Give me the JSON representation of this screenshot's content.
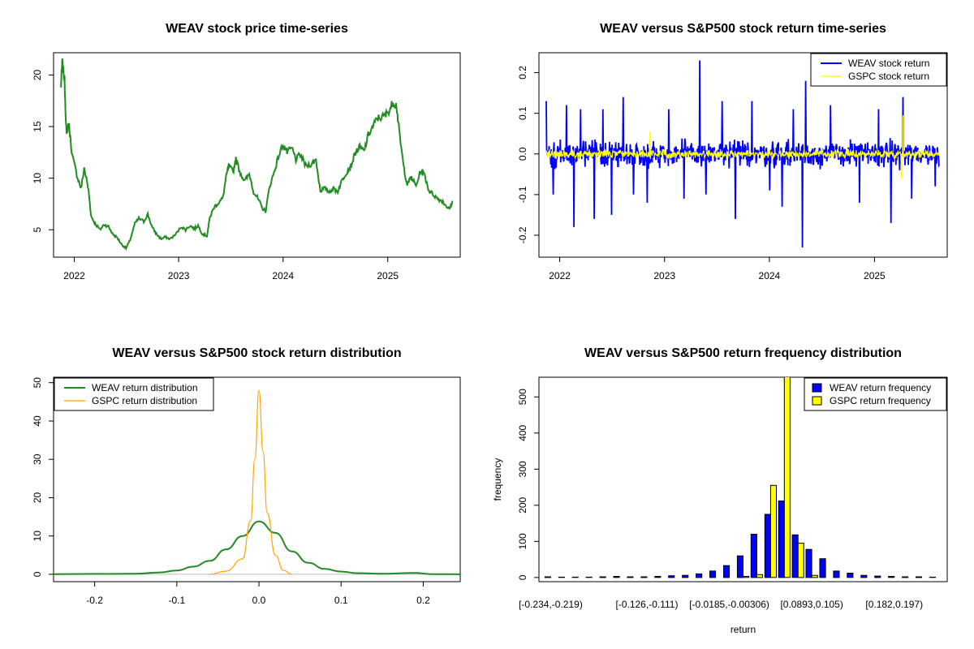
{
  "chart_data": [
    {
      "id": "price",
      "type": "line",
      "title": "WEAV stock price time-series",
      "xlabel": "",
      "ylabel": "",
      "x_ticks": [
        "2022",
        "2023",
        "2024",
        "2025"
      ],
      "y_ticks": [
        5,
        10,
        15,
        20
      ],
      "xlim": [
        "2021-11-01",
        "2025-08-31"
      ],
      "ylim": [
        2.5,
        22
      ],
      "series": [
        {
          "color": "#228B22",
          "points": [
            [
              "2021-11-15",
              18.7
            ],
            [
              "2021-11-20",
              21.2
            ],
            [
              "2021-11-28",
              19.5
            ],
            [
              "2021-12-05",
              14.0
            ],
            [
              "2021-12-12",
              15.5
            ],
            [
              "2021-12-25",
              12.2
            ],
            [
              "2022-01-10",
              10.3
            ],
            [
              "2022-01-25",
              9.0
            ],
            [
              "2022-02-05",
              11.0
            ],
            [
              "2022-02-20",
              8.8
            ],
            [
              "2022-03-01",
              6.3
            ],
            [
              "2022-03-15",
              5.6
            ],
            [
              "2022-04-01",
              5.0
            ],
            [
              "2022-04-15",
              5.5
            ],
            [
              "2022-05-01",
              5.3
            ],
            [
              "2022-05-15",
              4.6
            ],
            [
              "2022-06-01",
              4.2
            ],
            [
              "2022-06-15",
              3.6
            ],
            [
              "2022-07-01",
              3.2
            ],
            [
              "2022-07-15",
              4.0
            ],
            [
              "2022-08-01",
              5.6
            ],
            [
              "2022-08-15",
              6.1
            ],
            [
              "2022-09-01",
              5.8
            ],
            [
              "2022-09-15",
              6.5
            ],
            [
              "2022-10-01",
              5.2
            ],
            [
              "2022-10-15",
              4.6
            ],
            [
              "2022-11-01",
              4.1
            ],
            [
              "2022-11-15",
              4.3
            ],
            [
              "2022-12-01",
              4.1
            ],
            [
              "2022-12-20",
              4.5
            ],
            [
              "2023-01-10",
              5.3
            ],
            [
              "2023-01-25",
              5.0
            ],
            [
              "2023-02-10",
              5.4
            ],
            [
              "2023-02-25",
              5.1
            ],
            [
              "2023-03-10",
              5.4
            ],
            [
              "2023-03-25",
              4.6
            ],
            [
              "2023-04-10",
              4.4
            ],
            [
              "2023-04-20",
              6.2
            ],
            [
              "2023-05-05",
              7.2
            ],
            [
              "2023-05-20",
              7.6
            ],
            [
              "2023-06-05",
              8.1
            ],
            [
              "2023-06-15",
              10.0
            ],
            [
              "2023-06-25",
              11.2
            ],
            [
              "2023-07-10",
              10.6
            ],
            [
              "2023-07-20",
              11.8
            ],
            [
              "2023-08-05",
              10.5
            ],
            [
              "2023-08-20",
              9.7
            ],
            [
              "2023-09-05",
              10.4
            ],
            [
              "2023-09-20",
              8.7
            ],
            [
              "2023-10-05",
              8.0
            ],
            [
              "2023-10-20",
              7.1
            ],
            [
              "2023-11-01",
              6.8
            ],
            [
              "2023-11-15",
              9.2
            ],
            [
              "2023-12-01",
              10.6
            ],
            [
              "2023-12-15",
              12.0
            ],
            [
              "2024-01-01",
              13.3
            ],
            [
              "2024-01-15",
              12.5
            ],
            [
              "2024-02-01",
              12.9
            ],
            [
              "2024-02-15",
              11.8
            ],
            [
              "2024-03-01",
              12.3
            ],
            [
              "2024-03-20",
              11.2
            ],
            [
              "2024-04-10",
              11.4
            ],
            [
              "2024-04-25",
              11.8
            ],
            [
              "2024-05-10",
              8.8
            ],
            [
              "2024-05-25",
              9.0
            ],
            [
              "2024-06-10",
              8.7
            ],
            [
              "2024-06-25",
              9.0
            ],
            [
              "2024-07-10",
              8.7
            ],
            [
              "2024-07-25",
              9.8
            ],
            [
              "2024-08-10",
              10.6
            ],
            [
              "2024-08-25",
              11.2
            ],
            [
              "2024-09-10",
              12.5
            ],
            [
              "2024-09-25",
              13.0
            ],
            [
              "2024-10-10",
              12.6
            ],
            [
              "2024-10-25",
              14.2
            ],
            [
              "2024-11-10",
              15.0
            ],
            [
              "2024-11-25",
              15.8
            ],
            [
              "2024-12-10",
              15.9
            ],
            [
              "2024-12-25",
              16.1
            ],
            [
              "2025-01-10",
              16.8
            ],
            [
              "2025-01-20",
              17.4
            ],
            [
              "2025-02-01",
              17.0
            ],
            [
              "2025-02-10",
              14.5
            ],
            [
              "2025-02-25",
              11.2
            ],
            [
              "2025-03-10",
              9.4
            ],
            [
              "2025-03-25",
              10.1
            ],
            [
              "2025-04-10",
              9.2
            ],
            [
              "2025-04-25",
              10.7
            ],
            [
              "2025-05-10",
              10.3
            ],
            [
              "2025-05-25",
              8.8
            ],
            [
              "2025-06-10",
              8.4
            ],
            [
              "2025-06-25",
              8.0
            ],
            [
              "2025-07-10",
              7.8
            ],
            [
              "2025-07-25",
              7.3
            ],
            [
              "2025-08-05",
              7.0
            ],
            [
              "2025-08-15",
              7.8
            ]
          ]
        }
      ]
    },
    {
      "id": "returns",
      "type": "line",
      "title": "WEAV versus S&P500 stock return time-series",
      "xlabel": "",
      "ylabel": "",
      "x_ticks": [
        "2022",
        "2023",
        "2024",
        "2025"
      ],
      "y_ticks": [
        -0.2,
        -0.1,
        0.0,
        0.1,
        0.2
      ],
      "y_tick_labels": [
        "-0.2",
        "-0.1",
        "0.0",
        "0.1",
        "0.2"
      ],
      "xlim": [
        "2021-11-01",
        "2025-08-31"
      ],
      "ylim": [
        -0.25,
        0.245
      ],
      "legend_position": "top-right",
      "series": [
        {
          "name": "WEAV stock return",
          "color": "#0000FF",
          "band": 0.045,
          "spikes": [
            [
              "2021-11-15",
              0.13
            ],
            [
              "2021-12-10",
              -0.1
            ],
            [
              "2022-01-25",
              0.12
            ],
            [
              "2022-02-20",
              -0.18
            ],
            [
              "2022-03-15",
              0.11
            ],
            [
              "2022-05-01",
              -0.16
            ],
            [
              "2022-06-01",
              0.11
            ],
            [
              "2022-07-01",
              -0.15
            ],
            [
              "2022-08-10",
              0.14
            ],
            [
              "2022-09-15",
              -0.1
            ],
            [
              "2022-11-01",
              -0.12
            ],
            [
              "2023-01-15",
              0.11
            ],
            [
              "2023-03-10",
              -0.11
            ],
            [
              "2023-05-03",
              0.23
            ],
            [
              "2023-05-25",
              -0.1
            ],
            [
              "2023-07-20",
              0.13
            ],
            [
              "2023-09-05",
              -0.16
            ],
            [
              "2023-11-01",
              0.13
            ],
            [
              "2024-01-02",
              -0.09
            ],
            [
              "2024-02-14",
              -0.13
            ],
            [
              "2024-03-25",
              0.11
            ],
            [
              "2024-04-25",
              -0.23
            ],
            [
              "2024-05-07",
              0.18
            ],
            [
              "2024-08-01",
              0.12
            ],
            [
              "2024-11-10",
              -0.12
            ],
            [
              "2025-01-15",
              0.11
            ],
            [
              "2025-02-28",
              -0.17
            ],
            [
              "2025-04-10",
              0.14
            ],
            [
              "2025-05-10",
              -0.11
            ],
            [
              "2025-08-01",
              -0.08
            ]
          ]
        },
        {
          "name": "GSPC stock return",
          "color": "#FFFF00",
          "band": 0.015,
          "spikes": [
            [
              "2022-05-10",
              -0.04
            ],
            [
              "2022-11-10",
              0.055
            ],
            [
              "2025-04-10",
              0.095
            ],
            [
              "2025-04-05",
              -0.06
            ]
          ]
        }
      ]
    },
    {
      "id": "density",
      "type": "line",
      "title": "WEAV versus S&P500 stock return distribution",
      "xlabel": "",
      "ylabel": "",
      "x_ticks": [
        -0.2,
        -0.1,
        0.0,
        0.1,
        0.2
      ],
      "x_tick_labels": [
        "-0.2",
        "-0.1",
        "0.0",
        "0.1",
        "0.2"
      ],
      "y_ticks": [
        0,
        10,
        20,
        30,
        40,
        50
      ],
      "xlim": [
        -0.25,
        0.245
      ],
      "ylim": [
        -1.5,
        51
      ],
      "legend_position": "top-left",
      "series": [
        {
          "name": "WEAV return distribution",
          "color": "#228B22",
          "points": [
            [
              -0.25,
              0.05
            ],
            [
              -0.18,
              0.1
            ],
            [
              -0.15,
              0.15
            ],
            [
              -0.12,
              0.5
            ],
            [
              -0.1,
              1.0
            ],
            [
              -0.08,
              2.0
            ],
            [
              -0.06,
              3.5
            ],
            [
              -0.04,
              6.5
            ],
            [
              -0.02,
              10.0
            ],
            [
              0.0,
              13.8
            ],
            [
              0.02,
              10.8
            ],
            [
              0.04,
              6.0
            ],
            [
              0.06,
              3.0
            ],
            [
              0.08,
              1.4
            ],
            [
              0.1,
              0.7
            ],
            [
              0.12,
              0.3
            ],
            [
              0.15,
              0.15
            ],
            [
              0.19,
              0.35
            ],
            [
              0.21,
              0.05
            ],
            [
              0.245,
              0.0
            ]
          ]
        },
        {
          "name": "GSPC return distribution",
          "color": "#FFA500",
          "points": [
            [
              -0.06,
              0.0
            ],
            [
              -0.04,
              0.8
            ],
            [
              -0.02,
              4.0
            ],
            [
              -0.01,
              14.0
            ],
            [
              -0.005,
              30.0
            ],
            [
              0.0,
              48.0
            ],
            [
              0.005,
              32.0
            ],
            [
              0.01,
              16.0
            ],
            [
              0.02,
              5.0
            ],
            [
              0.03,
              1.0
            ],
            [
              0.04,
              0.0
            ]
          ]
        }
      ]
    },
    {
      "id": "hist",
      "type": "bar",
      "title": "WEAV versus S&P500 return frequency distribution",
      "xlabel": "return",
      "ylabel": "frequency",
      "y_ticks": [
        0,
        100,
        200,
        300,
        400,
        500
      ],
      "ylim": [
        -7,
        550
      ],
      "categories": [
        "[-0.234,-0.219)",
        "",
        "",
        "",
        "",
        "",
        "",
        "[-0.126,-0.111)",
        "",
        "",
        "",
        "",
        "",
        "[-0.0185,-0.00306)",
        "",
        "",
        "",
        "",
        "",
        "[0.0893,0.105)",
        "",
        "",
        "",
        "",
        "",
        "[0.182,0.197)",
        "",
        "",
        ""
      ],
      "x_tick_labels": [
        "[-0.234,-0.219)",
        "[-0.126,-0.111)",
        "[-0.0185,-0.00306)",
        "[0.0893,0.105)",
        "[0.182,0.197)"
      ],
      "legend_position": "top-right",
      "series": [
        {
          "name": "WEAV return frequency",
          "color": "#0000FF",
          "values": [
            2,
            1,
            1,
            1,
            2,
            3,
            2,
            2,
            3,
            5,
            6,
            10,
            18,
            33,
            60,
            120,
            175,
            212,
            118,
            78,
            52,
            18,
            12,
            6,
            4,
            3,
            2,
            2,
            1
          ]
        },
        {
          "name": "GSPC return frequency",
          "color": "#FFFF00",
          "values": [
            0,
            0,
            0,
            0,
            0,
            0,
            0,
            0,
            0,
            0,
            0,
            0,
            0,
            0,
            3,
            8,
            255,
            600,
            95,
            6,
            0,
            0,
            0,
            0,
            0,
            0,
            0,
            0,
            0
          ]
        }
      ]
    }
  ]
}
